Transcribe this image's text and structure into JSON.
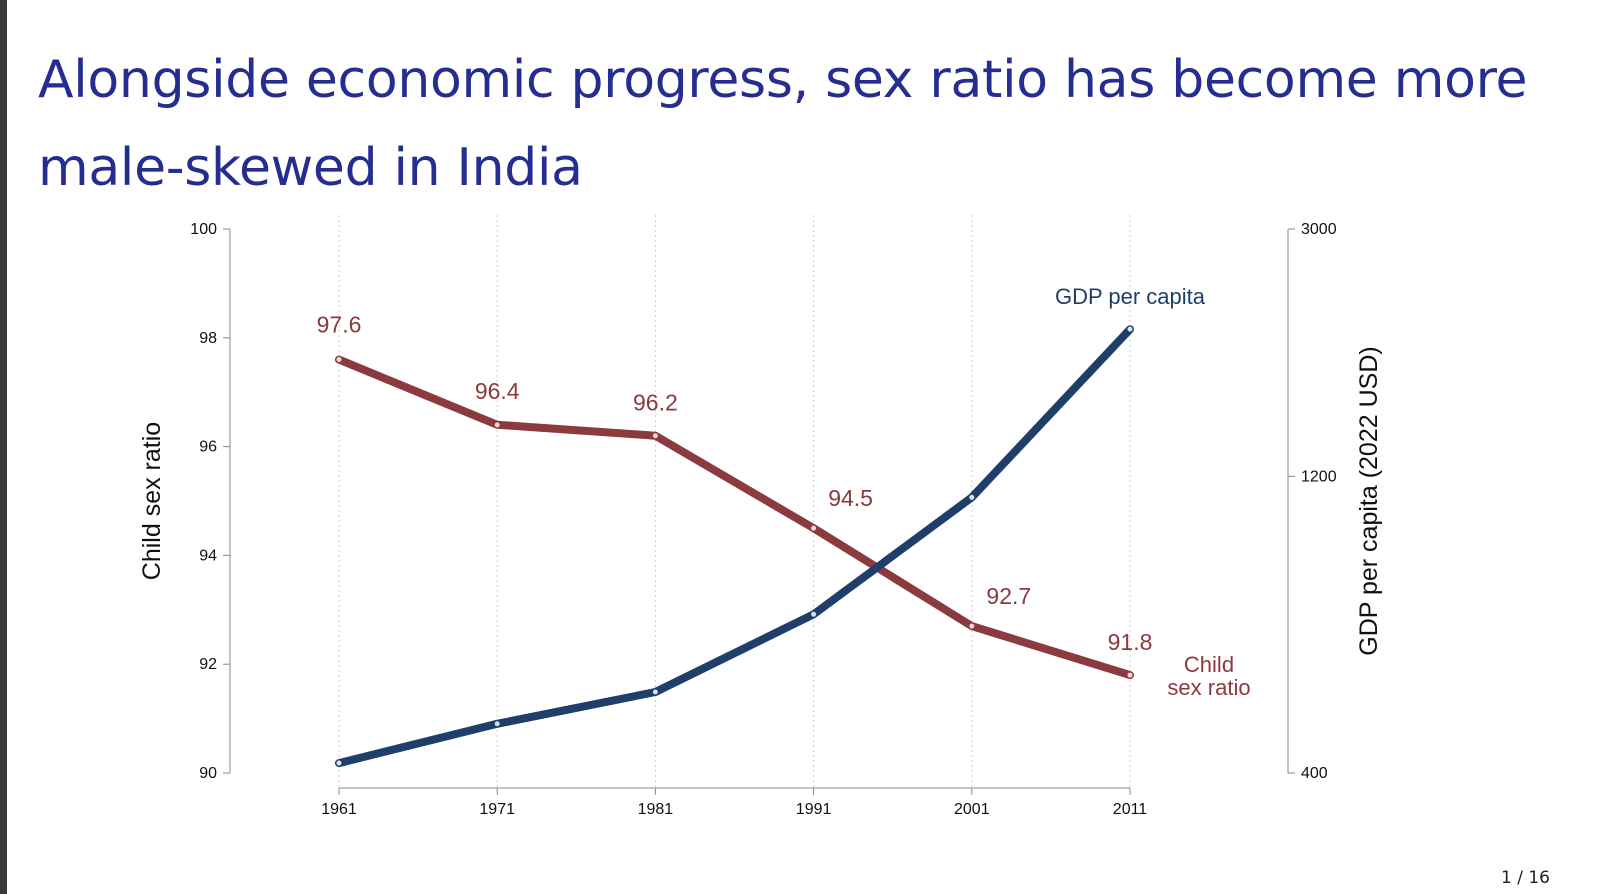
{
  "slide": {
    "title": "Alongside economic progress, sex ratio has become more male-skewed in India",
    "page": "1 / 16"
  },
  "colors": {
    "title": "#262d91",
    "sex_ratio_line": "#8b3a3e",
    "gdp_line": "#1f3f6a",
    "axis": "#888888",
    "grid": "#cccccc"
  },
  "chart_data": {
    "type": "line",
    "title": "",
    "x": [
      1961,
      1971,
      1981,
      1991,
      2001,
      2011
    ],
    "xlabel": "",
    "y_left": {
      "label": "Child sex ratio",
      "range": [
        90,
        100
      ],
      "ticks": [
        "100",
        "98",
        "96",
        "94",
        "92",
        "90"
      ],
      "tick_values": [
        100,
        98,
        96,
        94,
        92,
        90
      ]
    },
    "y_right": {
      "label": "GDP per capita (2022 USD)",
      "range": [
        400,
        3000
      ],
      "scale": "log",
      "ticks": [
        "3000",
        "1200",
        "400"
      ],
      "tick_values": [
        3000,
        1200,
        400
      ]
    },
    "grid": "vertical dotted at each x",
    "series": [
      {
        "name": "Child sex ratio",
        "label": [
          "Child",
          "sex ratio"
        ],
        "axis": "left",
        "values": [
          97.6,
          96.4,
          96.2,
          94.5,
          92.7,
          91.8
        ],
        "data_labels": [
          "97.6",
          "96.4",
          "96.2",
          "94.5",
          "92.7",
          "91.8"
        ]
      },
      {
        "name": "GDP per capita",
        "label": [
          "GDP per capita"
        ],
        "axis": "right",
        "values": [
          415,
          480,
          540,
          720,
          1110,
          2070
        ]
      }
    ]
  }
}
